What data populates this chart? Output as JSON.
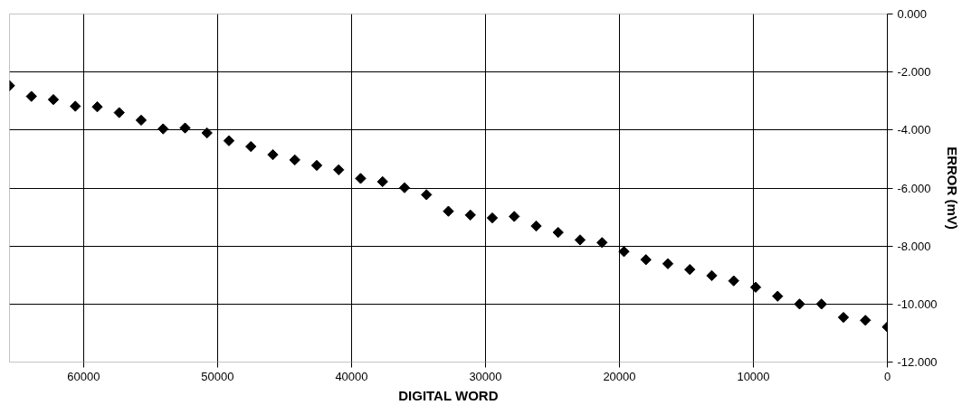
{
  "chart_data": {
    "type": "scatter",
    "xlabel": "DIGITAL WORD",
    "ylabel": "ERROR (mV)",
    "x": [
      65535,
      63898,
      62259,
      60621,
      58982,
      57344,
      55706,
      54067,
      52429,
      50790,
      49152,
      47514,
      45875,
      44237,
      42598,
      40960,
      39322,
      37683,
      36045,
      34406,
      32768,
      31130,
      29491,
      27853,
      26214,
      24576,
      22938,
      21299,
      19661,
      18022,
      16384,
      14746,
      13107,
      11469,
      9830,
      8192,
      6554,
      4915,
      3277,
      1638,
      0
    ],
    "series": [
      {
        "color": "#000000",
        "values": [
          -2.47,
          -2.84,
          -2.95,
          -3.18,
          -3.2,
          -3.4,
          -3.66,
          -3.96,
          -3.93,
          -4.1,
          -4.37,
          -4.57,
          -4.85,
          -5.03,
          -5.22,
          -5.37,
          -5.67,
          -5.78,
          -5.99,
          -6.23,
          -6.8,
          -6.93,
          -7.03,
          -6.98,
          -7.31,
          -7.53,
          -7.79,
          -7.88,
          -8.19,
          -8.47,
          -8.61,
          -8.81,
          -9.02,
          -9.2,
          -9.42,
          -9.73,
          -10.0,
          -10.0,
          -10.46,
          -10.56,
          -10.79
        ]
      }
    ],
    "xlim": [
      65535,
      0
    ],
    "xticks": [
      60000,
      50000,
      40000,
      30000,
      20000,
      10000,
      0
    ],
    "ylim": [
      -12,
      0
    ],
    "yticks": [
      {
        "value": 0,
        "label": "0.000"
      },
      {
        "value": -2,
        "label": "-2.000"
      },
      {
        "value": -4,
        "label": "-4.000"
      },
      {
        "value": -6,
        "label": "-6.000"
      },
      {
        "value": -8,
        "label": "-8.000"
      },
      {
        "value": -10,
        "label": "-10.000"
      },
      {
        "value": -12,
        "label": "-12.000"
      }
    ],
    "grid": true,
    "marker": "diamond"
  }
}
